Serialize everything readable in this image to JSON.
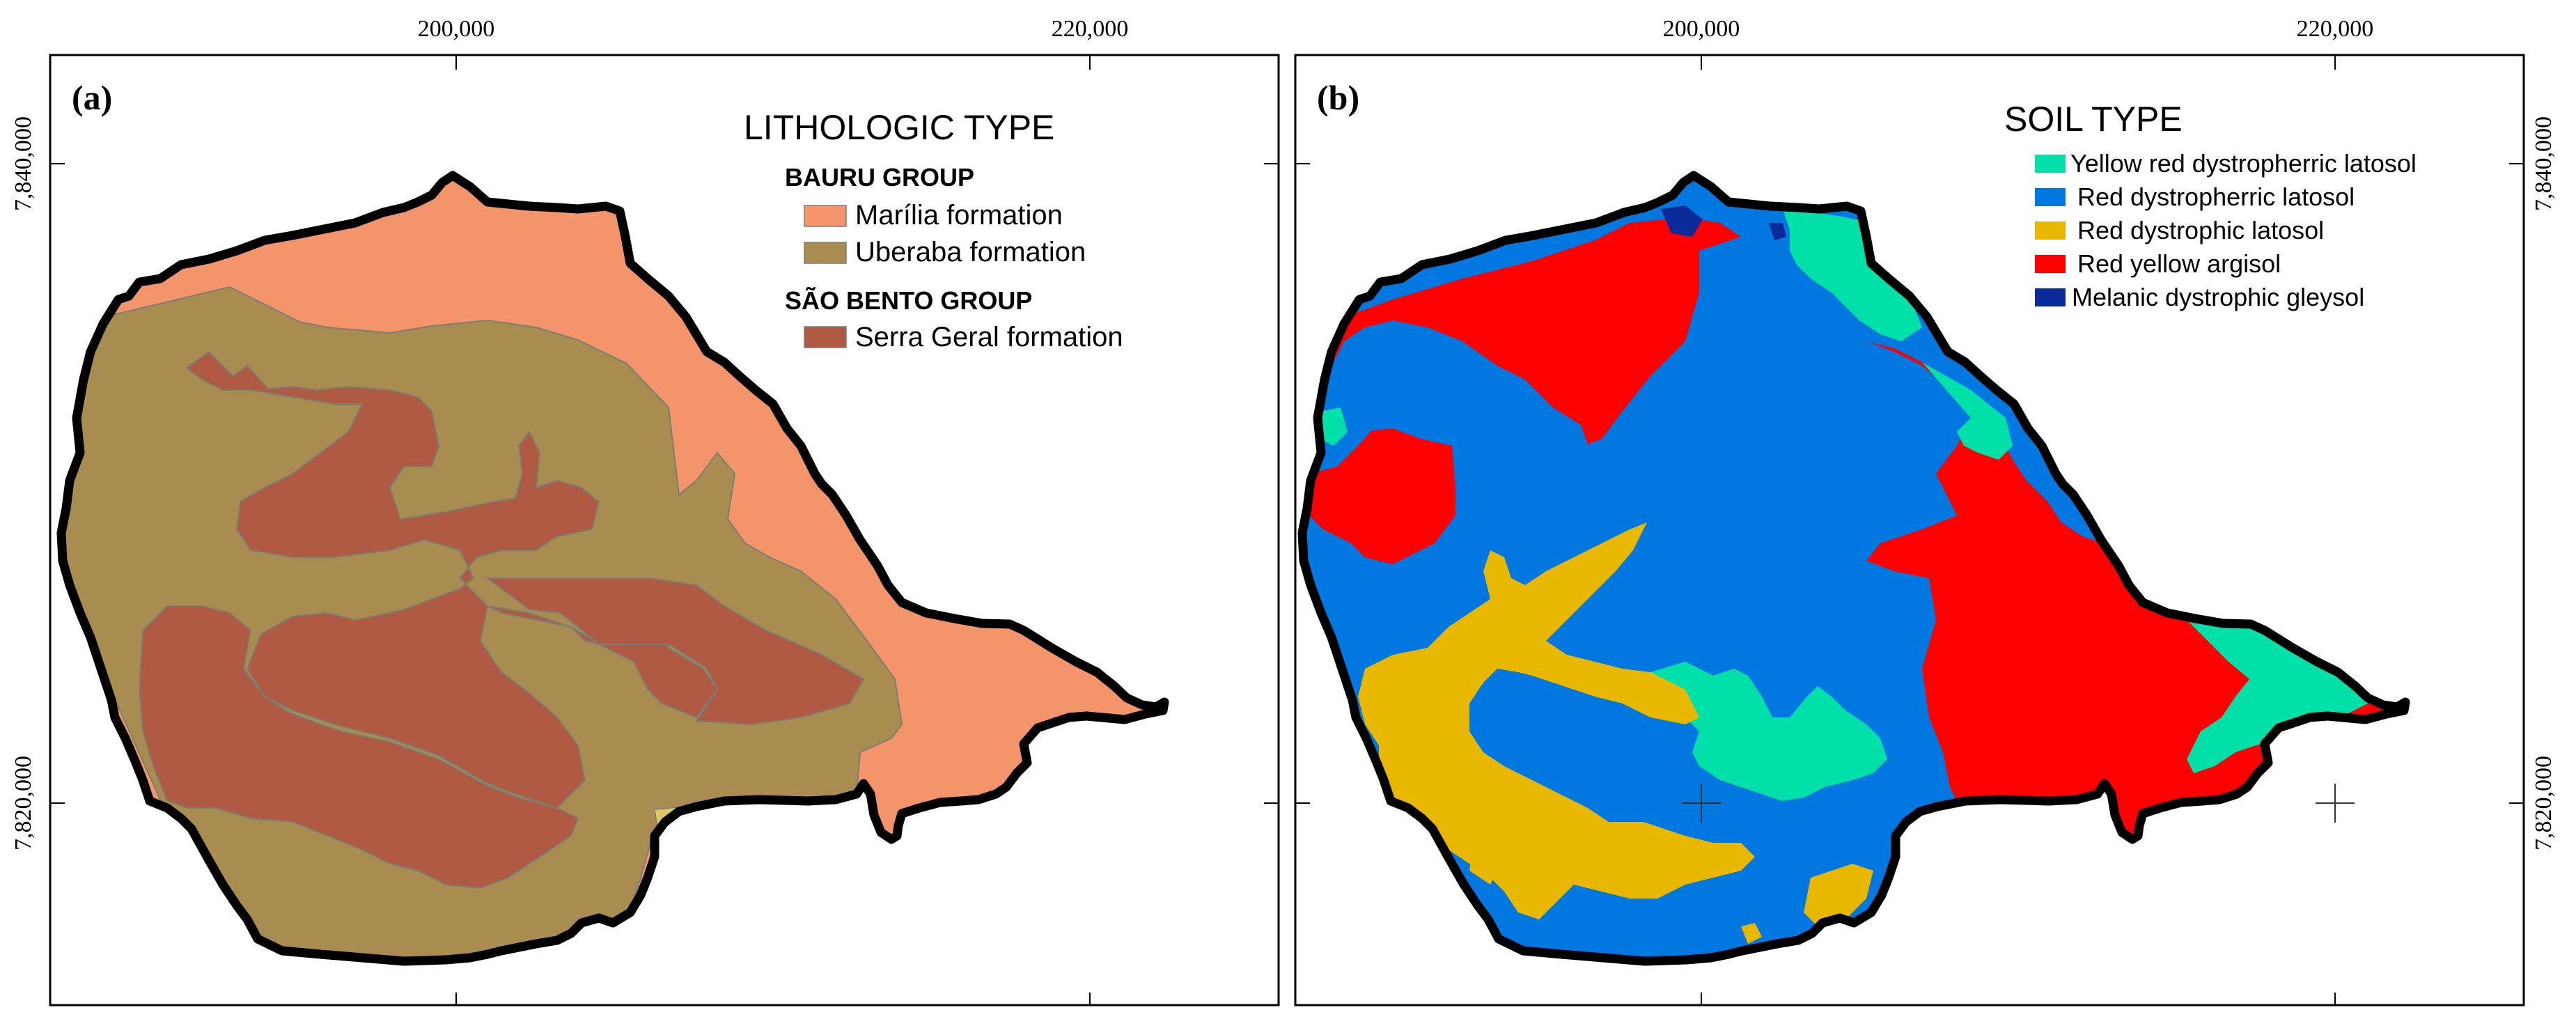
{
  "colors": {
    "frame": "#000000",
    "boundary": "#000000",
    "lithology_fill_stroke": "#7a7f74",
    "marilia": "#f4946a",
    "uberaba": "#a88c50",
    "serra_geral": "#b05a44",
    "lithology_other": "#e0c860",
    "yellow_red_dystropherric_latosol": "#00e0a8",
    "red_dystropherric_latosol": "#0078e0",
    "red_dystrophic_latosol": "#e8b800",
    "red_yellow_argisol": "#ff0000",
    "melanic_dystrophic_gleysol": "#0a2a9a"
  },
  "coordinates": {
    "easting_ticks": [
      "200,000",
      "220,000"
    ],
    "northing_ticks": [
      "7,840,000",
      "7,820,000"
    ]
  },
  "panel_a": {
    "tag": "(a)",
    "legend": {
      "title": "LITHOLOGIC TYPE",
      "groups": [
        {
          "name": "BAURU GROUP",
          "items": [
            {
              "label": "Marília formation",
              "color": "#f4946a"
            },
            {
              "label": "Uberaba formation",
              "color": "#a88c50"
            }
          ]
        },
        {
          "name": "SÃO BENTO GROUP",
          "items": [
            {
              "label": "Serra Geral formation",
              "color": "#b05a44"
            }
          ]
        }
      ]
    }
  },
  "panel_b": {
    "tag": "(b)",
    "legend": {
      "title": "SOIL TYPE",
      "items": [
        {
          "label": "Yellow red dystropherric latosol",
          "color": "#00e0a8"
        },
        {
          "label": "Red dystropherric latosol",
          "color": "#0078e0"
        },
        {
          "label": "Red dystrophic latosol",
          "color": "#e8b800"
        },
        {
          "label": "Red yellow argisol",
          "color": "#ff0000"
        },
        {
          "label": "Melanic dystrophic gleysol",
          "color": "#0a2a9a"
        }
      ]
    }
  }
}
